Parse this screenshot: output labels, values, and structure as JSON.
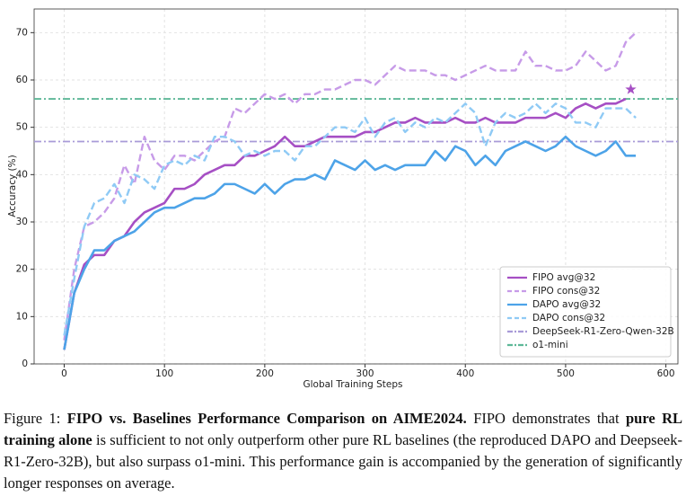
{
  "chart_data": {
    "type": "line",
    "xlabel": "Global Training Steps",
    "ylabel": "Accuracy (%)",
    "xlim": [
      -30,
      612
    ],
    "ylim": [
      0,
      75
    ],
    "xticks": [
      0,
      100,
      200,
      300,
      400,
      500,
      600
    ],
    "yticks": [
      0,
      10,
      20,
      30,
      40,
      50,
      60,
      70
    ],
    "grid": true,
    "legend": "lower right",
    "x": [
      0,
      10,
      20,
      30,
      40,
      50,
      60,
      70,
      80,
      90,
      100,
      110,
      120,
      130,
      140,
      150,
      160,
      170,
      180,
      190,
      200,
      210,
      220,
      230,
      240,
      250,
      260,
      270,
      280,
      290,
      300,
      310,
      320,
      330,
      340,
      350,
      360,
      370,
      380,
      390,
      400,
      410,
      420,
      430,
      440,
      450,
      460,
      470,
      480,
      490,
      500,
      510,
      520,
      530,
      540,
      550,
      560,
      570
    ],
    "series": [
      {
        "name": "FIPO avg@32",
        "color": "#a64fc4",
        "style": "solid",
        "values": [
          3,
          15,
          21,
          23,
          23,
          26,
          27,
          30,
          32,
          33,
          34,
          37,
          37,
          38,
          40,
          41,
          42,
          42,
          44,
          44,
          45,
          46,
          48,
          46,
          46,
          47,
          48,
          48,
          48,
          48,
          49,
          49,
          50,
          51,
          51,
          52,
          51,
          51,
          51,
          52,
          51,
          51,
          52,
          51,
          51,
          51,
          52,
          52,
          52,
          53,
          52,
          54,
          55,
          54,
          55,
          55,
          56,
          null
        ]
      },
      {
        "name": "FIPO cons@32",
        "color": "#c79be8",
        "style": "dashed",
        "values": [
          5,
          20,
          29,
          30,
          32,
          35,
          42,
          38,
          48,
          43,
          41,
          44,
          44,
          43,
          45,
          47,
          48,
          54,
          53,
          55,
          57,
          56,
          57,
          55,
          57,
          57,
          58,
          58,
          59,
          60,
          60,
          59,
          61,
          63,
          62,
          62,
          62,
          61,
          61,
          60,
          61,
          62,
          63,
          62,
          62,
          62,
          66,
          63,
          63,
          62,
          62,
          63,
          66,
          64,
          62,
          63,
          68,
          70
        ]
      },
      {
        "name": "DAPO avg@32",
        "color": "#4da3e8",
        "style": "solid",
        "values": [
          3,
          15,
          20,
          24,
          24,
          26,
          27,
          28,
          30,
          32,
          33,
          33,
          34,
          35,
          35,
          36,
          38,
          38,
          37,
          36,
          38,
          36,
          38,
          39,
          39,
          40,
          39,
          43,
          42,
          41,
          43,
          41,
          42,
          41,
          42,
          42,
          42,
          45,
          43,
          46,
          45,
          42,
          44,
          42,
          45,
          46,
          47,
          46,
          45,
          46,
          48,
          46,
          45,
          44,
          45,
          47,
          44,
          44
        ]
      },
      {
        "name": "DAPO cons@32",
        "color": "#8fcaf5",
        "style": "dashed",
        "values": [
          6,
          18,
          29,
          34,
          35,
          38,
          34,
          40,
          39,
          37,
          42,
          43,
          42,
          44,
          43,
          48,
          48,
          47,
          44,
          45,
          44,
          45,
          45,
          43,
          46,
          46,
          48,
          50,
          50,
          49,
          52,
          48,
          51,
          52,
          49,
          51,
          50,
          52,
          51,
          53,
          55,
          53,
          46,
          51,
          53,
          52,
          53,
          55,
          53,
          55,
          54,
          51,
          51,
          50,
          54,
          54,
          54,
          52
        ]
      }
    ],
    "reference_lines": [
      {
        "name": "DeepSeek-R1-Zero-Qwen-32B",
        "value": 47,
        "color": "#a99bd8"
      },
      {
        "name": "o1-mini",
        "value": 56,
        "color": "#5eb898"
      }
    ],
    "star": {
      "x": 565,
      "y": 58,
      "color": "#a64fc4"
    }
  },
  "caption": {
    "label": "Figure 1:",
    "bold_title": "FIPO vs. Baselines Performance Comparison on AIME2024.",
    "text1": "FIPO demonstrates that",
    "bold_phrase": "pure RL training alone",
    "text2": "is sufficient to not only outperform other pure RL baselines (the reproduced DAPO and Deepseek-R1-Zero-32B), but also surpass o1-mini. This performance gain is accompanied by the generation of significantly longer responses on average."
  }
}
